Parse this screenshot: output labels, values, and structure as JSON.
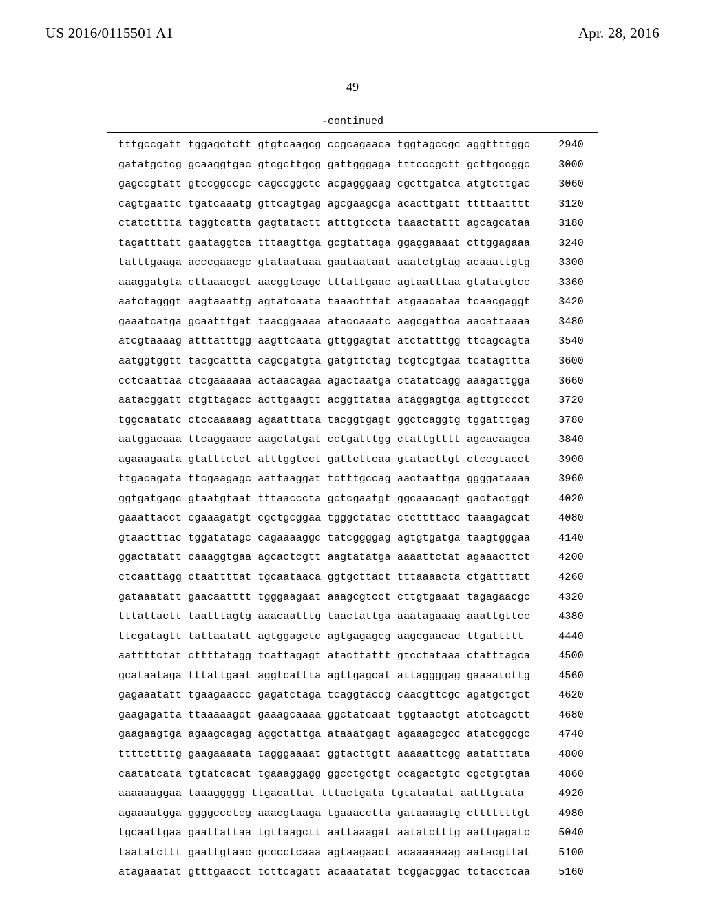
{
  "header": {
    "left": "US 2016/0115501 A1",
    "right": "Apr. 28, 2016"
  },
  "page_number": "49",
  "continued_label": "-continued",
  "sequence": {
    "rows": [
      {
        "groups": [
          "tttgccgatt",
          "tggagctctt",
          "gtgtcaagcg",
          "ccgcagaaca",
          "tggtagccgc",
          "aggttttggc"
        ],
        "pos": "2940"
      },
      {
        "groups": [
          "gatatgctcg",
          "gcaaggtgac",
          "gtcgcttgcg",
          "gattgggaga",
          "tttcccgctt",
          "gcttgccggc"
        ],
        "pos": "3000"
      },
      {
        "groups": [
          "gagccgtatt",
          "gtccggccgc",
          "cagccggctc",
          "acgagggaag",
          "cgcttgatca",
          "atgtcttgac"
        ],
        "pos": "3060"
      },
      {
        "groups": [
          "cagtgaattc",
          "tgatcaaatg",
          "gttcagtgag",
          "agcgaagcga",
          "acacttgatt",
          "ttttaatttt"
        ],
        "pos": "3120"
      },
      {
        "groups": [
          "ctatctttta",
          "taggtcatta",
          "gagtatactt",
          "atttgtccta",
          "taaactattt",
          "agcagcataa"
        ],
        "pos": "3180"
      },
      {
        "groups": [
          "tagatttatt",
          "gaataggtca",
          "tttaagttga",
          "gcgtattaga",
          "ggaggaaaat",
          "cttggagaaa"
        ],
        "pos": "3240"
      },
      {
        "groups": [
          "tatttgaaga",
          "acccgaacgc",
          "gtataataaa",
          "gaataataat",
          "aaatctgtag",
          "acaaattgtg"
        ],
        "pos": "3300"
      },
      {
        "groups": [
          "aaaggatgta",
          "cttaaacgct",
          "aacggtcagc",
          "tttattgaac",
          "agtaatttaa",
          "gtatatgtcc"
        ],
        "pos": "3360"
      },
      {
        "groups": [
          "aatctagggt",
          "aagtaaattg",
          "agtatcaata",
          "taaactttat",
          "atgaacataa",
          "tcaacgaggt"
        ],
        "pos": "3420"
      },
      {
        "groups": [
          "gaaatcatga",
          "gcaatttgat",
          "taacggaaaa",
          "ataccaaatc",
          "aagcgattca",
          "aacattaaaa"
        ],
        "pos": "3480"
      },
      {
        "groups": [
          "atcgtaaaag",
          "atttatttgg",
          "aagttcaata",
          "gttggagtat",
          "atctatttgg",
          "ttcagcagta"
        ],
        "pos": "3540"
      },
      {
        "groups": [
          "aatggtggtt",
          "tacgcattta",
          "cagcgatgta",
          "gatgttctag",
          "tcgtcgtgaa",
          "tcatagttta"
        ],
        "pos": "3600"
      },
      {
        "groups": [
          "cctcaattaa",
          "ctcgaaaaaa",
          "actaacagaa",
          "agactaatga",
          "ctatatcagg",
          "aaagattgga"
        ],
        "pos": "3660"
      },
      {
        "groups": [
          "aatacggatt",
          "ctgttagacc",
          "acttgaagtt",
          "acggttataa",
          "ataggagtga",
          "agttgtccct"
        ],
        "pos": "3720"
      },
      {
        "groups": [
          "tggcaatatc",
          "ctccaaaaag",
          "agaatttata",
          "tacggtgagt",
          "ggctcaggtg",
          "tggatttgag"
        ],
        "pos": "3780"
      },
      {
        "groups": [
          "aatggacaaa",
          "ttcaggaacc",
          "aagctatgat",
          "cctgatttgg",
          "ctattgtttt",
          "agcacaagca"
        ],
        "pos": "3840"
      },
      {
        "groups": [
          "agaaagaata",
          "gtatttctct",
          "atttggtcct",
          "gattcttcaa",
          "gtatacttgt",
          "ctccgtacct"
        ],
        "pos": "3900"
      },
      {
        "groups": [
          "ttgacagata",
          "ttcgaagagc",
          "aattaaggat",
          "tctttgccag",
          "aactaattga",
          "ggggataaaa"
        ],
        "pos": "3960"
      },
      {
        "groups": [
          "ggtgatgagc",
          "gtaatgtaat",
          "tttaacccta",
          "gctcgaatgt",
          "ggcaaacagt",
          "gactactggt"
        ],
        "pos": "4020"
      },
      {
        "groups": [
          "gaaattacct",
          "cgaaagatgt",
          "cgctgcggaa",
          "tgggctatac",
          "ctcttttacc",
          "taaagagcat"
        ],
        "pos": "4080"
      },
      {
        "groups": [
          "gtaactttac",
          "tggatatagc",
          "cagaaaaggc",
          "tatcggggag",
          "agtgtgatga",
          "taagtgggaa"
        ],
        "pos": "4140"
      },
      {
        "groups": [
          "ggactatatt",
          "caaaggtgaa",
          "agcactcgtt",
          "aagtatatga",
          "aaaattctat",
          "agaaacttct"
        ],
        "pos": "4200"
      },
      {
        "groups": [
          "ctcaattagg",
          "ctaattttat",
          "tgcaataaca",
          "ggtgcttact",
          "tttaaaacta",
          "ctgatttatt"
        ],
        "pos": "4260"
      },
      {
        "groups": [
          "gataaatatt",
          "gaacaatttt",
          "tgggaagaat",
          "aaagcgtcct",
          "cttgtgaaat",
          "tagagaacgc"
        ],
        "pos": "4320"
      },
      {
        "groups": [
          "tttattactt",
          "taatttagtg",
          "aaacaatttg",
          "taactattga",
          "aaatagaaag",
          "aaattgttcc"
        ],
        "pos": "4380"
      },
      {
        "groups": [
          "ttcgatagtt",
          "tattaatatt",
          "agtggagctc",
          "agtgagagcg",
          "aagcgaacac",
          "ttgattttt"
        ],
        "pos": "4440"
      },
      {
        "groups": [
          "aattttctat",
          "cttttatagg",
          "tcattagagt",
          "atacttattt",
          "gtcctataaa",
          "ctatttagca"
        ],
        "pos": "4500"
      },
      {
        "groups": [
          "gcataataga",
          "tttattgaat",
          "aggtcattta",
          "agttgagcat",
          "attaggggag",
          "gaaaatcttg"
        ],
        "pos": "4560"
      },
      {
        "groups": [
          "gagaaatatt",
          "tgaagaaccc",
          "gagatctaga",
          "tcaggtaccg",
          "caacgttcgc",
          "agatgctgct"
        ],
        "pos": "4620"
      },
      {
        "groups": [
          "gaagagatta",
          "ttaaaaagct",
          "gaaagcaaaa",
          "ggctatcaat",
          "tggtaactgt",
          "atctcagctt"
        ],
        "pos": "4680"
      },
      {
        "groups": [
          "gaagaagtga",
          "agaagcagag",
          "aggctattga",
          "ataaatgagt",
          "agaaagcgcc",
          "atatcggcgc"
        ],
        "pos": "4740"
      },
      {
        "groups": [
          "ttttcttttg",
          "gaagaaaata",
          "tagggaaaat",
          "ggtacttgtt",
          "aaaaattcgg",
          "aatatttata"
        ],
        "pos": "4800"
      },
      {
        "groups": [
          "caatatcata",
          "tgtatcacat",
          "tgaaaggagg",
          "ggcctgctgt",
          "ccagactgtc",
          "cgctgtgtaa"
        ],
        "pos": "4860"
      },
      {
        "groups": [
          "aaaaaaggaa",
          "taaaggggg",
          "ttgacattat",
          "tttactgata",
          "tgtataatat",
          "aatttgtata"
        ],
        "pos": "4920"
      },
      {
        "groups": [
          "agaaaatgga",
          "ggggccctcg",
          "aaacgtaaga",
          "tgaaacctta",
          "gataaaagtg",
          "ctttttttgt"
        ],
        "pos": "4980"
      },
      {
        "groups": [
          "tgcaattgaa",
          "gaattattaa",
          "tgttaagctt",
          "aattaaagat",
          "aatatctttg",
          "aattgagatc"
        ],
        "pos": "5040"
      },
      {
        "groups": [
          "taatatcttt",
          "gaattgtaac",
          "gcccctcaaa",
          "agtaagaact",
          "acaaaaaaag",
          "aatacgttat"
        ],
        "pos": "5100"
      },
      {
        "groups": [
          "atagaaatat",
          "gtttgaacct",
          "tcttcagatt",
          "acaaatatat",
          "tcggacggac",
          "tctacctcaa"
        ],
        "pos": "5160"
      }
    ]
  }
}
